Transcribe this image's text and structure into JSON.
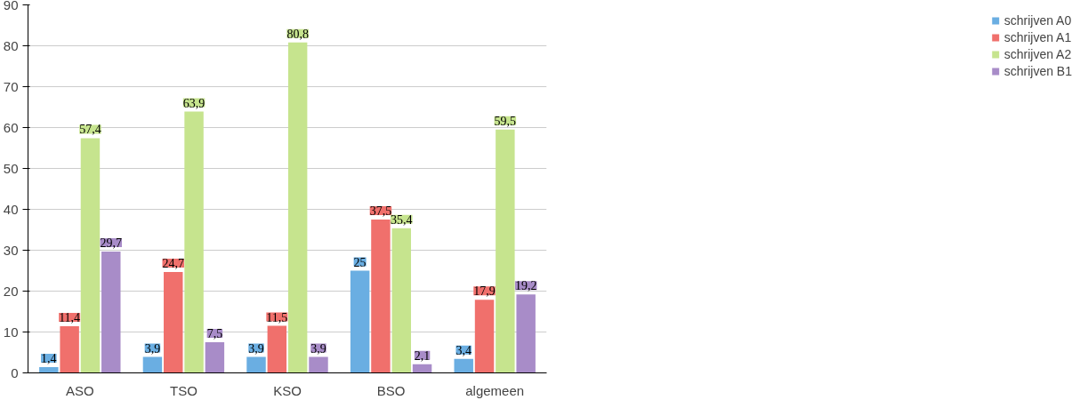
{
  "chart_data": {
    "type": "bar",
    "categories": [
      "ASO",
      "TSO",
      "KSO",
      "BSO",
      "algemeen"
    ],
    "series": [
      {
        "name": "schrijven A0",
        "color": "#6aaee2",
        "values": [
          1.4,
          3.9,
          3.9,
          25,
          3.4
        ],
        "value_labels": [
          "1,4",
          "3,9",
          "3,9",
          "25",
          "3,4"
        ]
      },
      {
        "name": "schrijven A1",
        "color": "#f0706c",
        "values": [
          11.4,
          24.7,
          11.5,
          37.5,
          17.9
        ],
        "value_labels": [
          "11,4",
          "24,7",
          "11,5",
          "37,5",
          "17,9"
        ]
      },
      {
        "name": "schrijven A2",
        "color": "#c6e48e",
        "values": [
          57.4,
          63.9,
          80.8,
          35.4,
          59.5
        ],
        "value_labels": [
          "57,4",
          "63,9",
          "80,8",
          "35,4",
          "59,5"
        ]
      },
      {
        "name": "schrijven B1",
        "color": "#a88cc8",
        "values": [
          29.7,
          7.5,
          3.9,
          2.1,
          19.2
        ],
        "value_labels": [
          "29,7",
          "7,5",
          "3,9",
          "2,1",
          "19,2"
        ]
      }
    ],
    "ylim": [
      0,
      90
    ],
    "yticks": [
      0,
      10,
      20,
      30,
      40,
      50,
      60,
      70,
      80,
      90
    ],
    "grid": "y",
    "legend": "right"
  }
}
